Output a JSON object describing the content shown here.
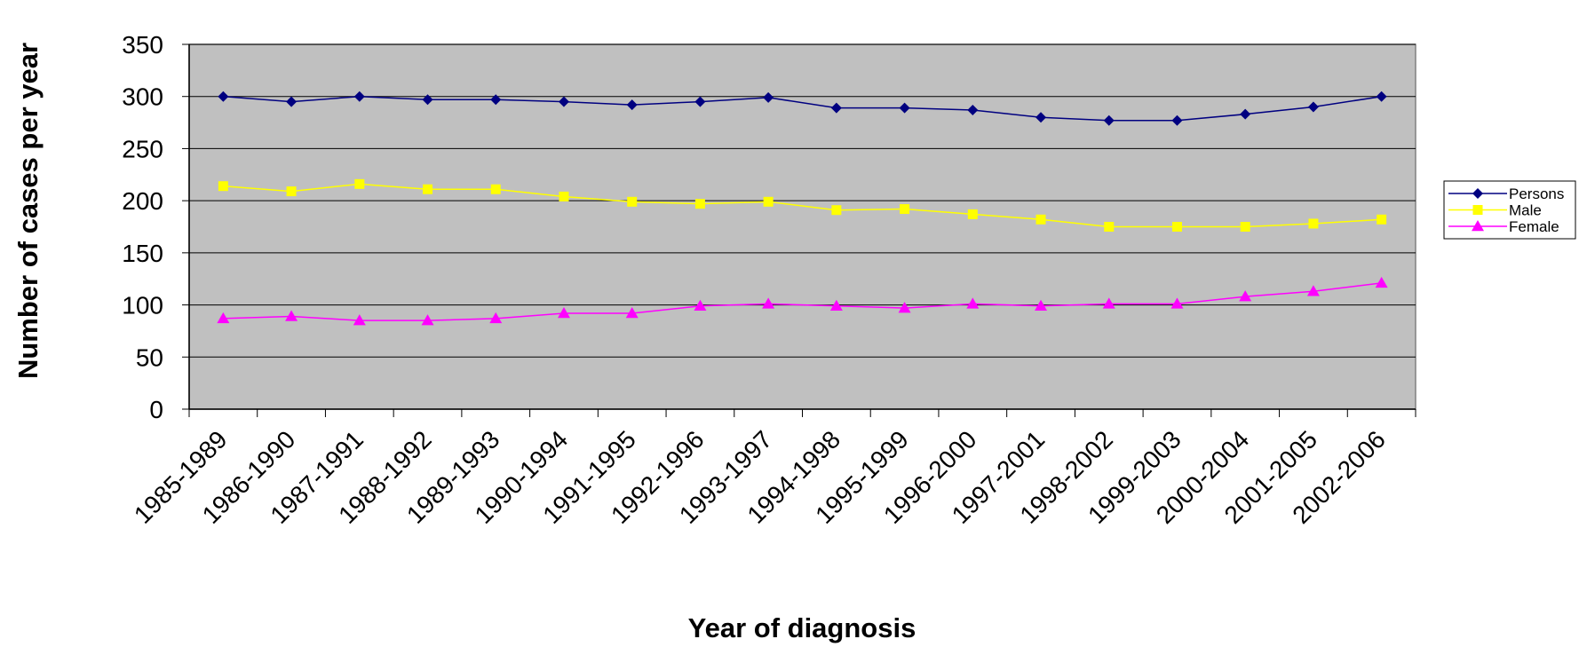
{
  "chart_data": {
    "type": "line",
    "title": "",
    "xlabel": "Year of diagnosis",
    "ylabel": "Number of cases per year",
    "ylim": [
      0,
      350
    ],
    "yticks": [
      0,
      50,
      100,
      150,
      200,
      250,
      300,
      350
    ],
    "grid": true,
    "legend_position": "right",
    "background_color": "#c0c0c0",
    "categories": [
      "1985-1989",
      "1986-1990",
      "1987-1991",
      "1988-1992",
      "1989-1993",
      "1990-1994",
      "1991-1995",
      "1992-1996",
      "1993-1997",
      "1994-1998",
      "1995-1999",
      "1996-2000",
      "1997-2001",
      "1998-2002",
      "1999-2003",
      "2000-2004",
      "2001-2005",
      "2002-2006"
    ],
    "series": [
      {
        "name": "Persons",
        "color": "#000080",
        "marker": "diamond",
        "values": [
          300,
          295,
          300,
          297,
          297,
          295,
          292,
          295,
          299,
          289,
          289,
          287,
          280,
          277,
          277,
          283,
          290,
          300
        ]
      },
      {
        "name": "Male",
        "color": "#ffff00",
        "marker": "square",
        "values": [
          214,
          209,
          216,
          211,
          211,
          204,
          199,
          197,
          199,
          191,
          192,
          187,
          182,
          175,
          175,
          175,
          178,
          182
        ]
      },
      {
        "name": "Female",
        "color": "#ff00ff",
        "marker": "triangle",
        "values": [
          87,
          89,
          85,
          85,
          87,
          92,
          92,
          99,
          101,
          99,
          97,
          101,
          99,
          101,
          101,
          108,
          113,
          121
        ]
      }
    ]
  }
}
